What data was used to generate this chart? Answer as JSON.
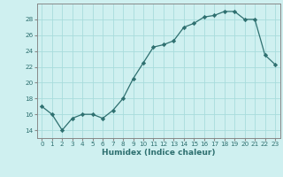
{
  "x": [
    0,
    1,
    2,
    3,
    4,
    5,
    6,
    7,
    8,
    9,
    10,
    11,
    12,
    13,
    14,
    15,
    16,
    17,
    18,
    19,
    20,
    21,
    22,
    23
  ],
  "y": [
    17,
    16,
    14,
    15.5,
    16,
    16,
    15.5,
    16.5,
    18,
    20.5,
    22.5,
    24.5,
    24.8,
    25.3,
    27,
    27.5,
    28.3,
    28.5,
    29,
    29,
    28,
    28,
    23.5,
    22.3
  ],
  "line_color": "#2e7070",
  "marker_color": "#2e7070",
  "bg_color": "#cff0f0",
  "grid_color": "#a8dcdc",
  "xlabel": "Humidex (Indice chaleur)",
  "ylim": [
    13,
    30
  ],
  "yticks": [
    14,
    16,
    18,
    20,
    22,
    24,
    26,
    28
  ],
  "xlim": [
    -0.5,
    23.5
  ],
  "xticks": [
    0,
    1,
    2,
    3,
    4,
    5,
    6,
    7,
    8,
    9,
    10,
    11,
    12,
    13,
    14,
    15,
    16,
    17,
    18,
    19,
    20,
    21,
    22,
    23
  ],
  "tick_label_color": "#2e7070",
  "spine_color": "#888888",
  "xlabel_fontsize": 6.5,
  "tick_fontsize": 5.2
}
